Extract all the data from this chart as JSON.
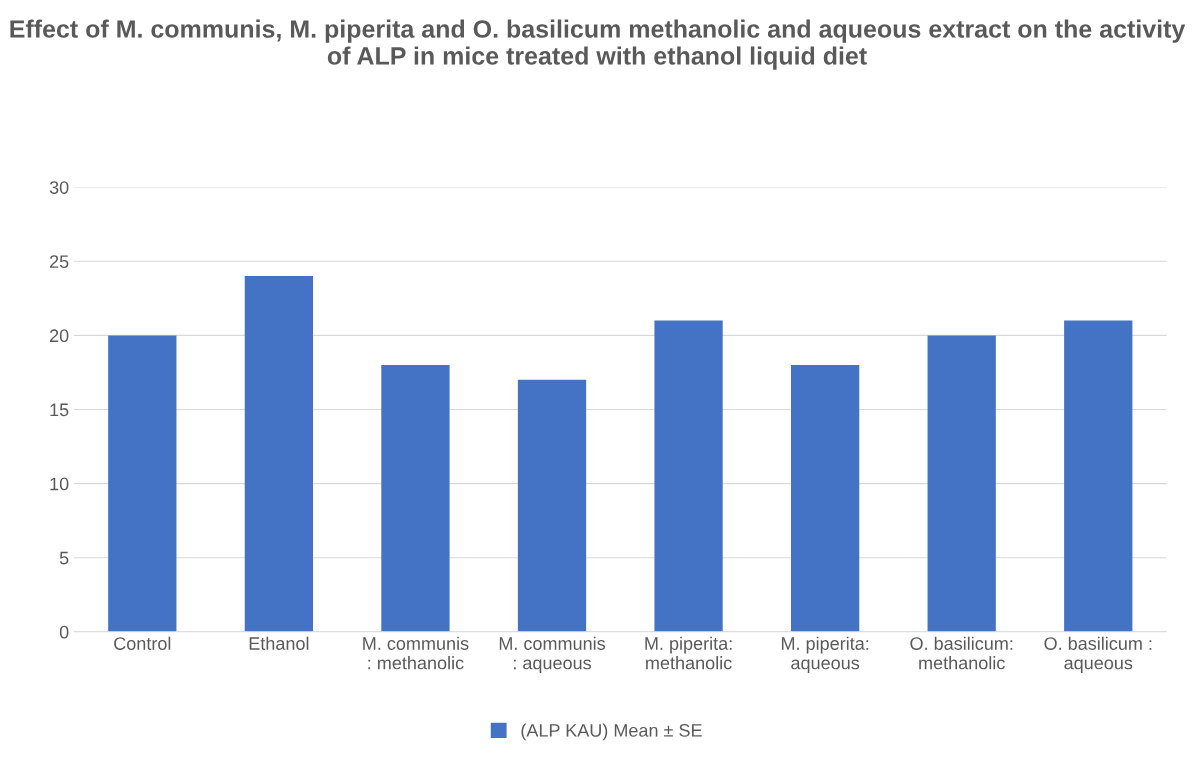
{
  "chart_data": {
    "type": "bar",
    "title": "Effect of M. communis, M. piperita and O. basilicum methanolic and aqueous extract on the activity of ALP in mice treated with ethanol liquid diet",
    "categories": [
      "Control",
      "Ethanol",
      "M. communis\n: methanolic",
      "M. communis\n: aqueous",
      "M. piperita:\nmethanolic",
      "M. piperita:\naqueous",
      "O. basilicum:\nmethanolic",
      "O. basilicum :\naqueous"
    ],
    "series": [
      {
        "name": "(ALP KAU) Mean ± SE",
        "color": "#4472c4",
        "values": [
          20,
          24,
          18,
          17,
          21,
          18,
          20,
          21
        ]
      }
    ],
    "ylim": [
      0,
      30
    ],
    "yticks": [
      0,
      5,
      10,
      15,
      20,
      25,
      30
    ],
    "grid": "y",
    "legend": "bottom"
  }
}
